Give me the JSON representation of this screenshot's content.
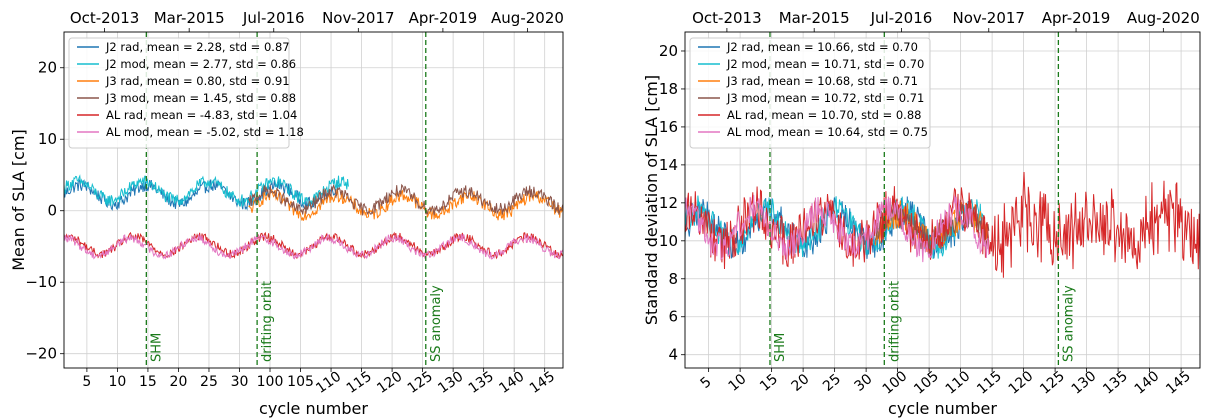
{
  "chart_data": [
    {
      "type": "line",
      "panel": "left",
      "ylabel": "Mean of SLA [cm]",
      "xlabel": "cycle number",
      "top_axis_labels": [
        "Oct-2013",
        "Mar-2015",
        "Jul-2016",
        "Nov-2017",
        "Apr-2019",
        "Aug-2020"
      ],
      "bottom_axis_labels": [
        "5",
        "10",
        "15",
        "20",
        "25",
        "30",
        "100",
        "105",
        "110",
        "115",
        "120",
        "125",
        "130",
        "135",
        "140",
        "145"
      ],
      "ylim": [
        -22,
        25
      ],
      "yticks": [
        -20,
        -10,
        0,
        10,
        20
      ],
      "grid": true,
      "legend_position": "top-left",
      "events": [
        {
          "label": "SHM",
          "x_index": 16.5
        },
        {
          "label": "drifting orbit",
          "x_index": 38.7
        },
        {
          "label": "SS anomaly",
          "x_index": 72.5
        }
      ],
      "series": [
        {
          "name": "J2 rad, mean = 2.28, std = 0.87",
          "color": "#1f77b4",
          "x_range": [
            0,
            55
          ],
          "mean": 2.28,
          "std": 0.87,
          "amp": 1.3,
          "noise": 0.9
        },
        {
          "name": "J2 mod, mean = 2.77, std = 0.86",
          "color": "#17becf",
          "x_range": [
            0,
            57
          ],
          "mean": 2.77,
          "std": 0.86,
          "amp": 1.3,
          "noise": 0.9
        },
        {
          "name": "J3 rad, mean = 0.80, std = 0.91",
          "color": "#ff7f0e",
          "x_range": [
            37,
            100
          ],
          "mean": 0.8,
          "std": 0.91,
          "amp": 1.3,
          "noise": 0.9
        },
        {
          "name": "J3 mod, mean = 1.45, std = 0.88",
          "color": "#8c564b",
          "x_range": [
            37,
            100
          ],
          "mean": 1.45,
          "std": 0.88,
          "amp": 1.3,
          "noise": 0.9
        },
        {
          "name": "AL rad, mean = -4.83, std = 1.04",
          "color": "#d62728",
          "x_range": [
            0,
            100
          ],
          "mean": -4.83,
          "std": 1.04,
          "amp": 1.2,
          "noise": 0.6
        },
        {
          "name": "AL mod, mean = -5.02, std = 1.18",
          "color": "#e377c2",
          "x_range": [
            0,
            100
          ],
          "mean": -5.02,
          "std": 1.18,
          "amp": 1.2,
          "noise": 0.6
        }
      ]
    },
    {
      "type": "line",
      "panel": "right",
      "ylabel": "Standard deviation of SLA [cm]",
      "xlabel": "cycle number",
      "top_axis_labels": [
        "Oct-2013",
        "Mar-2015",
        "Jul-2016",
        "Nov-2017",
        "Apr-2019",
        "Aug-2020"
      ],
      "bottom_axis_labels": [
        "5",
        "10",
        "15",
        "20",
        "25",
        "30",
        "100",
        "105",
        "110",
        "115",
        "120",
        "125",
        "130",
        "135",
        "140",
        "145"
      ],
      "ylim": [
        3.3,
        21
      ],
      "yticks": [
        4,
        6,
        8,
        10,
        12,
        14,
        16,
        18,
        20
      ],
      "grid": true,
      "legend_position": "top-left",
      "events": [
        {
          "label": "SHM",
          "x_index": 16.5
        },
        {
          "label": "drifting orbit",
          "x_index": 38.7
        },
        {
          "label": "SS anomaly",
          "x_index": 72.5
        }
      ],
      "series": [
        {
          "name": "J2 rad, mean = 10.66, std = 0.70",
          "color": "#1f77b4",
          "x_range": [
            0,
            55
          ],
          "mean": 10.66,
          "std": 0.7,
          "amp": 0.9,
          "noise": 0.8
        },
        {
          "name": "J2 mod, mean = 10.71, std = 0.70",
          "color": "#17becf",
          "x_range": [
            0,
            58
          ],
          "mean": 10.71,
          "std": 0.7,
          "amp": 0.9,
          "noise": 0.8
        },
        {
          "name": "J3 rad, mean = 10.68, std = 0.71",
          "color": "#ff7f0e",
          "x_range": [
            37,
            59
          ],
          "mean": 10.68,
          "std": 0.71,
          "amp": 0.7,
          "noise": 0.8
        },
        {
          "name": "J3 mod, mean = 10.72, std = 0.71",
          "color": "#8c564b",
          "x_range": [
            37,
            59
          ],
          "mean": 10.72,
          "std": 0.71,
          "amp": 0.7,
          "noise": 0.8
        },
        {
          "name": "AL rad, mean = 10.70, std = 0.88",
          "color": "#d62728",
          "x_range": [
            0,
            100
          ],
          "mean": 10.7,
          "std": 0.88,
          "amp": 0.9,
          "noise": 1.3
        },
        {
          "name": "AL mod, mean = 10.64, std = 0.75",
          "color": "#e377c2",
          "x_range": [
            0,
            59
          ],
          "mean": 10.64,
          "std": 0.75,
          "amp": 1.0,
          "noise": 0.8
        }
      ]
    }
  ]
}
